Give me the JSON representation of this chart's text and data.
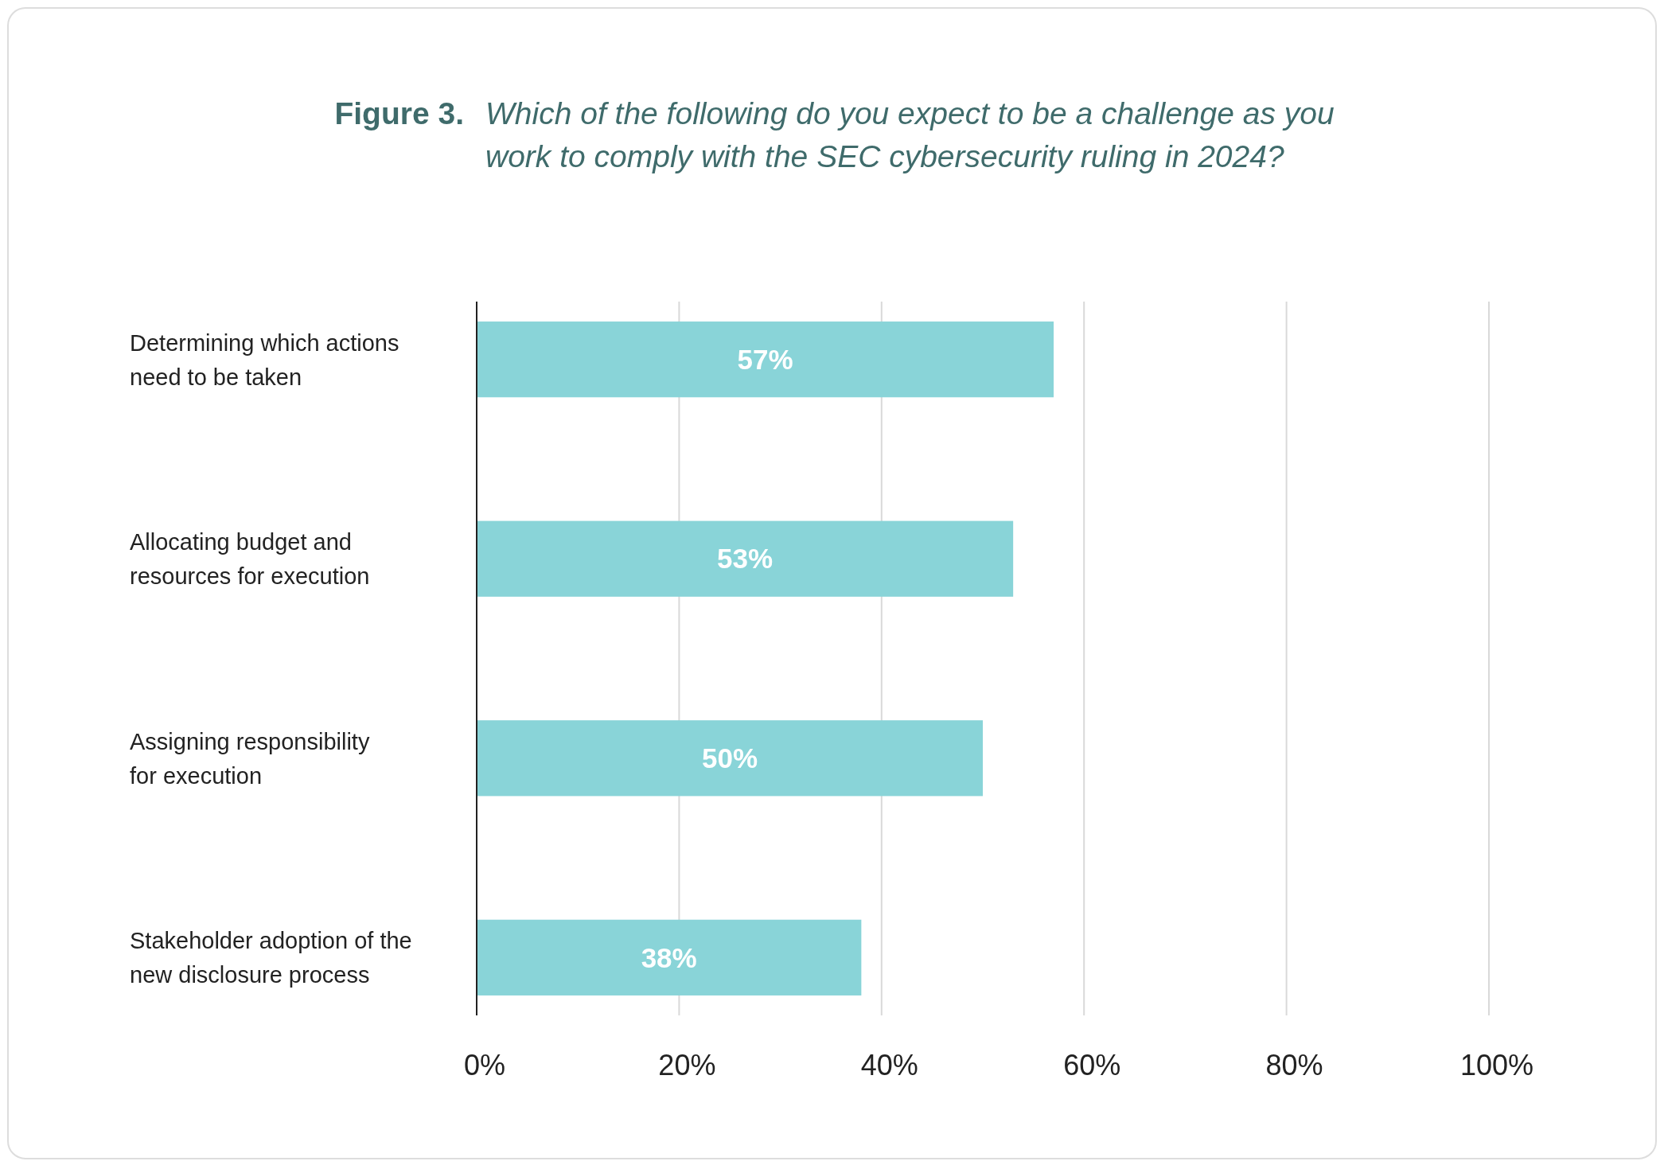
{
  "chart_data": {
    "type": "bar",
    "orientation": "horizontal",
    "title": "Figure 3.",
    "subtitle": "Which of the following do you expect to be a challenge as you work to comply with the SEC cybersecurity ruling in 2024?",
    "categories": [
      "Determining which actions need to be taken",
      "Allocating budget and resources for execution",
      "Assigning responsibility for execution",
      "Stakeholder adoption of the new disclosure process"
    ],
    "values": [
      57,
      53,
      50,
      38
    ],
    "color": "#89d4d8",
    "value_labels": [
      "57%",
      "53%",
      "50%",
      "38%"
    ],
    "xlim": [
      0,
      100
    ],
    "xticks": [
      {
        "value": 0,
        "label": "0%"
      },
      {
        "value": 20,
        "label": "20%"
      },
      {
        "value": 40,
        "label": "40%"
      },
      {
        "value": 60,
        "label": "60%"
      },
      {
        "value": 80,
        "label": "80%"
      },
      {
        "value": 100,
        "label": "100%"
      }
    ],
    "grid": "x"
  }
}
